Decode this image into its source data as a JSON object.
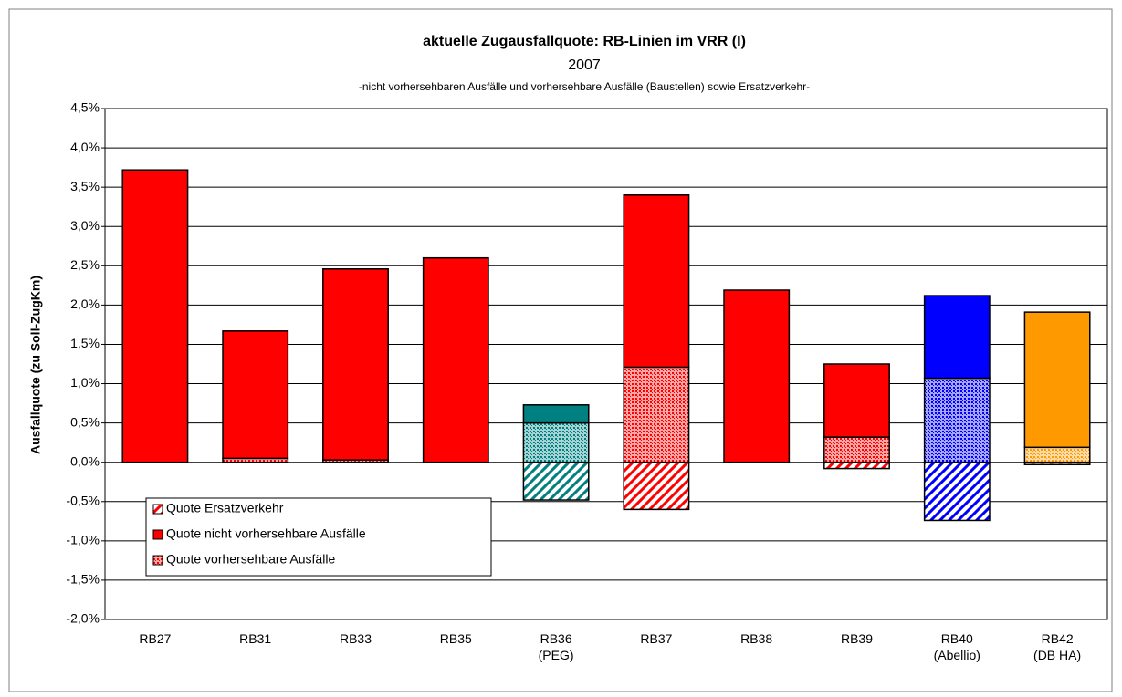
{
  "chart_data": {
    "type": "stacked_bar",
    "title": "aktuelle Zugausfallquote: RB-Linien im VRR (I)",
    "subtitle": "2007",
    "note": "-nicht vorhersehbaren Ausfälle und vorhersehbare Ausfälle (Baustellen) sowie Ersatzverkehr-",
    "ylabel": "Ausfallquote (zu Soll-ZugKm)",
    "categories": [
      "RB27",
      "RB31",
      "RB33",
      "RB35",
      "RB36\n(PEG)",
      "RB37",
      "RB38",
      "RB39",
      "RB40\n(Abellio)",
      "RB42\n(DB HA)"
    ],
    "bar_colors": [
      "#ff0000",
      "#ff0000",
      "#ff0000",
      "#ff0000",
      "#008080",
      "#ff0000",
      "#ff0000",
      "#ff0000",
      "#0000ff",
      "#ff9900"
    ],
    "series": [
      {
        "name": "Quote Ersatzverkehr",
        "color": "#ff0000",
        "pattern": "hatch",
        "values": [
          0,
          0,
          0,
          0,
          -0.48,
          -0.6,
          0,
          -0.08,
          -0.74,
          -0.03
        ]
      },
      {
        "name": "Quote nicht vorhersehbare Ausfälle",
        "color": "#ff0000",
        "pattern": "solid",
        "values": [
          3.72,
          1.62,
          2.43,
          2.6,
          0.23,
          2.19,
          2.19,
          0.93,
          1.05,
          1.72
        ]
      },
      {
        "name": "Quote vorhersehbare Ausfälle",
        "color": "#ff0000",
        "pattern": "dots",
        "values": [
          0,
          0.05,
          0.03,
          0,
          0.5,
          1.21,
          0,
          0.32,
          1.07,
          0.19
        ]
      }
    ],
    "ylim": [
      -2.0,
      4.5
    ],
    "yticks": [
      {
        "value": -2.0,
        "label": "-2,0%"
      },
      {
        "value": -1.5,
        "label": "-1,5%"
      },
      {
        "value": -1.0,
        "label": "-1,0%"
      },
      {
        "value": -0.5,
        "label": "-0,5%"
      },
      {
        "value": 0,
        "label": "0,0%"
      },
      {
        "value": 0.5,
        "label": "0,5%"
      },
      {
        "value": 1.0,
        "label": "1,0%"
      },
      {
        "value": 1.5,
        "label": "1,5%"
      },
      {
        "value": 2.0,
        "label": "2,0%"
      },
      {
        "value": 2.5,
        "label": "2,5%"
      },
      {
        "value": 3.0,
        "label": "3,0%"
      },
      {
        "value": 3.5,
        "label": "3,5%"
      },
      {
        "value": 4.0,
        "label": "4,0%"
      },
      {
        "value": 4.5,
        "label": "4,5%"
      }
    ],
    "grid": true,
    "legend": "lower left"
  }
}
